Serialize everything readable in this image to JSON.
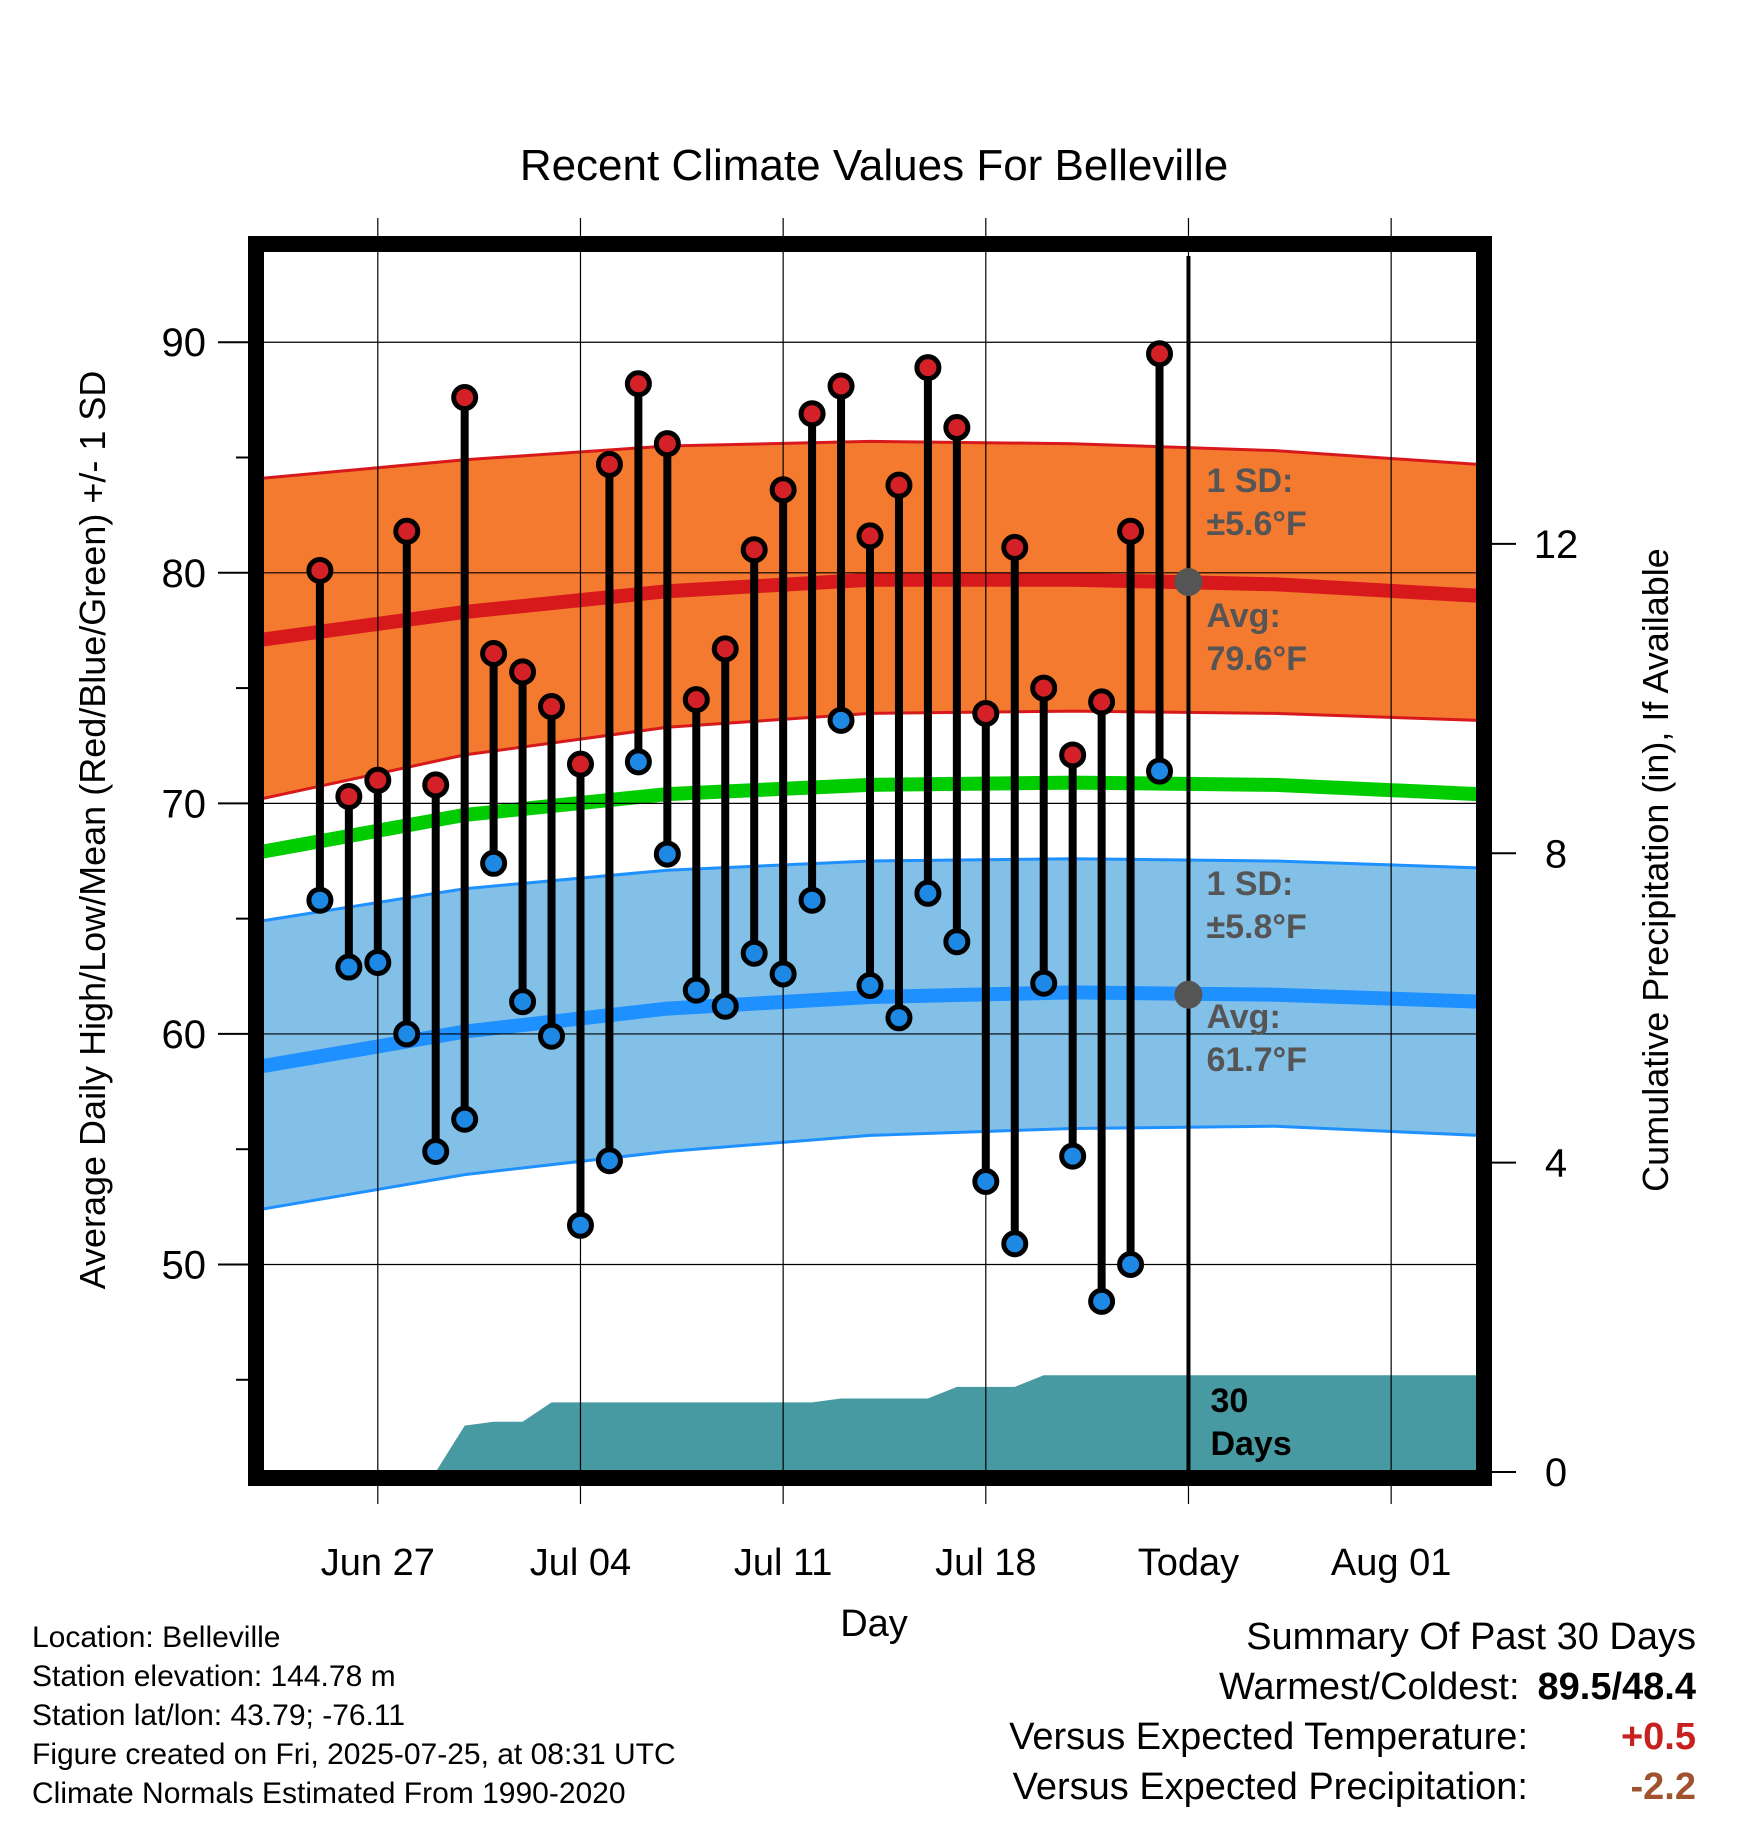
{
  "chart_data": {
    "type": "line",
    "title": "Recent Climate Values For Belleville",
    "xlabel": "Day",
    "ylabel": "Average Daily High/Low/Mean (Red/Blue/Green) +/- 1 SD",
    "y2label": "Cumulative Precipitation (in), If Available",
    "x_ticks": [
      "Jun 27",
      "Jul 04",
      "Jul 11",
      "Jul 18",
      "Today",
      "Aug 01"
    ],
    "x_tick_dates": [
      "2025-06-27",
      "2025-07-04",
      "2025-07-11",
      "2025-07-18",
      "2025-07-25",
      "2025-08-01"
    ],
    "xlim": [
      "2025-06-23",
      "2025-08-04"
    ],
    "today": "2025-07-25",
    "ylim": [
      41,
      94
    ],
    "y_ticks": [
      50,
      60,
      70,
      80,
      90
    ],
    "y2lim": [
      0,
      15.8
    ],
    "y2_ticks": [
      0,
      4,
      8,
      12
    ],
    "grid": true,
    "daily_obs": {
      "dates": [
        "2025-06-25",
        "2025-06-26",
        "2025-06-27",
        "2025-06-28",
        "2025-06-29",
        "2025-06-30",
        "2025-07-01",
        "2025-07-02",
        "2025-07-03",
        "2025-07-04",
        "2025-07-05",
        "2025-07-06",
        "2025-07-07",
        "2025-07-08",
        "2025-07-09",
        "2025-07-10",
        "2025-07-11",
        "2025-07-12",
        "2025-07-13",
        "2025-07-14",
        "2025-07-15",
        "2025-07-16",
        "2025-07-17",
        "2025-07-18",
        "2025-07-19",
        "2025-07-20",
        "2025-07-21",
        "2025-07-22",
        "2025-07-23",
        "2025-07-24"
      ],
      "highs": [
        80.1,
        70.3,
        71.0,
        81.8,
        70.8,
        87.6,
        76.5,
        75.7,
        74.2,
        71.7,
        84.7,
        88.2,
        85.6,
        74.5,
        76.7,
        81.0,
        83.6,
        86.9,
        88.1,
        81.6,
        83.8,
        88.9,
        86.3,
        73.9,
        81.1,
        75.0,
        72.1,
        74.4,
        81.8,
        89.5
      ],
      "lows": [
        65.8,
        62.9,
        63.1,
        60.0,
        54.9,
        56.3,
        67.4,
        61.4,
        59.9,
        51.7,
        54.5,
        71.8,
        67.8,
        61.9,
        61.2,
        63.5,
        62.6,
        65.8,
        73.6,
        62.1,
        60.7,
        66.1,
        64.0,
        53.6,
        50.9,
        62.2,
        54.7,
        48.4,
        50.0,
        71.4
      ]
    },
    "normals": {
      "dates": [
        "2025-06-23",
        "2025-06-30",
        "2025-07-07",
        "2025-07-14",
        "2025-07-21",
        "2025-07-28",
        "2025-08-04"
      ],
      "high_avg": [
        77.1,
        78.3,
        79.2,
        79.7,
        79.7,
        79.5,
        79.0
      ],
      "high_upper": [
        84.1,
        84.9,
        85.5,
        85.7,
        85.6,
        85.3,
        84.7
      ],
      "high_lower": [
        70.2,
        72.1,
        73.3,
        73.9,
        74.0,
        73.9,
        73.6
      ],
      "mean_avg": [
        67.9,
        69.5,
        70.4,
        70.8,
        70.9,
        70.8,
        70.4
      ],
      "low_avg": [
        58.6,
        60.1,
        61.1,
        61.6,
        61.8,
        61.7,
        61.4
      ],
      "low_upper": [
        64.9,
        66.3,
        67.1,
        67.5,
        67.6,
        67.5,
        67.2
      ],
      "low_lower": [
        52.4,
        53.9,
        54.9,
        55.6,
        55.9,
        56.0,
        55.6
      ]
    },
    "precip_cumulative": {
      "dates": [
        "2025-06-23",
        "2025-06-28",
        "2025-06-29",
        "2025-06-30",
        "2025-07-01",
        "2025-07-02",
        "2025-07-03",
        "2025-07-04",
        "2025-07-12",
        "2025-07-13",
        "2025-07-15",
        "2025-07-16",
        "2025-07-17",
        "2025-07-18",
        "2025-07-19",
        "2025-07-20",
        "2025-07-21",
        "2025-08-04"
      ],
      "values": [
        0.0,
        0.0,
        0.0,
        0.6,
        0.65,
        0.65,
        0.9,
        0.9,
        0.9,
        0.95,
        0.95,
        0.95,
        1.1,
        1.1,
        1.1,
        1.25,
        1.25,
        1.25
      ]
    },
    "annotations": {
      "high_sd": "1 SD:",
      "high_sd_val": "±5.6°F",
      "high_avg_label": "Avg:",
      "high_avg_val": "79.6°F",
      "low_sd": "1 SD:",
      "low_sd_val": "±5.8°F",
      "low_avg_label": "Avg:",
      "low_avg_val": "61.7°F",
      "period_num": "30",
      "period_unit": "Days"
    },
    "colors": {
      "high_band": "#f47a30",
      "high_line": "#d7191c",
      "mean_line": "#00cc00",
      "low_band": "#82c0e8",
      "low_line": "#1e90ff",
      "precip": "#479aa1",
      "high_dot": "#d42127",
      "low_dot": "#1e88e5",
      "today_dot": "#555555"
    }
  },
  "footer": {
    "location": "Location: Belleville",
    "elevation": "Station elevation: 144.78 m",
    "latlon": "Station lat/lon: 43.79; -76.11",
    "created": "Figure created on Fri, 2025-07-25, at 08:31 UTC",
    "normals": "Climate Normals Estimated From 1990-2020"
  },
  "summary": {
    "title": "Summary Of Past 30 Days",
    "warm_label": "Warmest/Coldest:",
    "warm_value": "89.5/48.4",
    "temp_label": "Versus Expected Temperature:",
    "temp_value": "+0.5",
    "precip_label": "Versus Expected Precipitation:",
    "precip_value": "-2.2"
  }
}
